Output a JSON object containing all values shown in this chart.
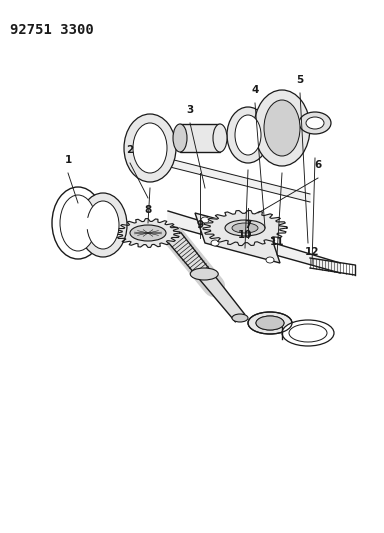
{
  "title_text": "92751 3300",
  "bg_color": "#ffffff",
  "line_color": "#1a1a1a",
  "fig_width": 3.84,
  "fig_height": 5.33,
  "dpi": 100,
  "shaft_color": "#e8e8e8",
  "gear_color": "#e0e0e0"
}
